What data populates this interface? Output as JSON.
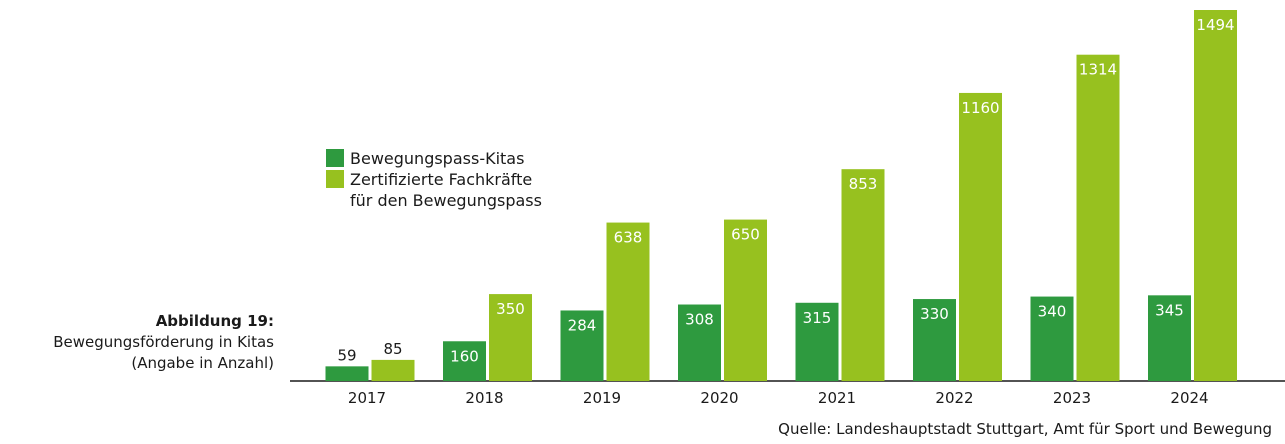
{
  "chart_data": {
    "type": "bar",
    "caption_title": "Abbildung 19:",
    "caption_lines": [
      "Bewegungsförderung in Kitas",
      "(Angabe in Anzahl)"
    ],
    "source": "Quelle: Landeshauptstadt Stuttgart, Amt für Sport und Bewegung",
    "categories": [
      "2017",
      "2018",
      "2019",
      "2020",
      "2021",
      "2022",
      "2023",
      "2024"
    ],
    "series": [
      {
        "name": "Bewegungspass-Kitas",
        "color": "#2e9a3f",
        "values": [
          59,
          160,
          284,
          308,
          315,
          330,
          340,
          345
        ]
      },
      {
        "name": "Zertifizierte Fachkräfte\nfür den Bewegungspass",
        "color": "#97c11f",
        "values": [
          85,
          350,
          638,
          650,
          853,
          1160,
          1314,
          1494
        ]
      }
    ]
  }
}
